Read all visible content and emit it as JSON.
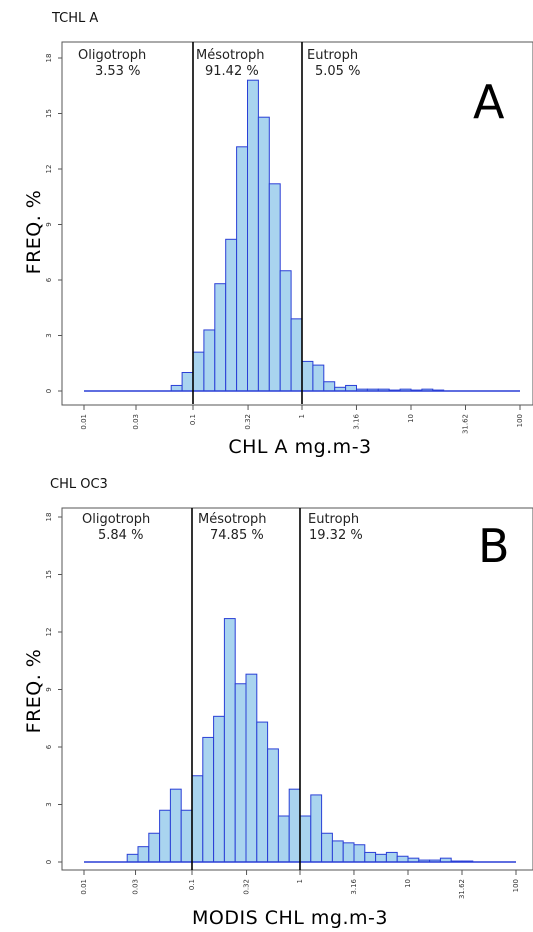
{
  "chart_data": [
    {
      "panel_title": "TCHL A",
      "panel_letter": "A",
      "type": "bar",
      "xlabel": "CHL A mg.m-3",
      "ylabel": "FREQ. %",
      "x_scale": "log10",
      "xlim": [
        0.01,
        100
      ],
      "ylim": [
        0,
        18
      ],
      "x_ticks": [
        "0.01",
        "0.03",
        "0.1",
        "0.32",
        "1",
        "3.16",
        "10",
        "31.62",
        "100"
      ],
      "y_ticks": [
        "0",
        "3",
        "6",
        "9",
        "12",
        "15",
        "18"
      ],
      "zones": [
        {
          "name": "Oligotroph",
          "percent": "3.53 %"
        },
        {
          "name": "Mésotroph",
          "percent": "91.42 %"
        },
        {
          "name": "Eutroph",
          "percent": "5.05 %"
        }
      ],
      "zone_boundaries": [
        0.1,
        1
      ],
      "bins_start_log10": -1.2,
      "bin_width_log10": 0.1,
      "values": [
        0.3,
        1.0,
        2.1,
        3.3,
        5.8,
        8.2,
        13.2,
        16.8,
        14.8,
        11.2,
        6.5,
        3.9,
        1.6,
        1.4,
        0.5,
        0.2,
        0.3,
        0.1,
        0.1,
        0.1,
        0.05,
        0.1,
        0.05,
        0.1,
        0.05
      ],
      "baseline_range_log10": [
        -2,
        2
      ]
    },
    {
      "panel_title": "CHL OC3",
      "panel_letter": "B",
      "type": "bar",
      "xlabel": "MODIS CHL mg.m-3",
      "ylabel": "FREQ. %",
      "x_scale": "log10",
      "xlim": [
        0.01,
        100
      ],
      "ylim": [
        0,
        18
      ],
      "x_ticks": [
        "0.01",
        "0.03",
        "0.1",
        "0.32",
        "1",
        "3.16",
        "10",
        "31.62",
        "100"
      ],
      "y_ticks": [
        "0",
        "3",
        "6",
        "9",
        "12",
        "15",
        "18"
      ],
      "zones": [
        {
          "name": "Oligotroph",
          "percent": "5.84 %"
        },
        {
          "name": "Mésotroph",
          "percent": "74.85 %"
        },
        {
          "name": "Eutroph",
          "percent": "19.32 %"
        }
      ],
      "zone_boundaries": [
        0.1,
        1
      ],
      "bins_start_log10": -1.6,
      "bin_width_log10": 0.1,
      "values": [
        0.4,
        0.8,
        1.5,
        2.7,
        3.8,
        2.7,
        4.5,
        6.5,
        7.6,
        12.7,
        9.3,
        9.8,
        7.3,
        5.9,
        2.4,
        3.8,
        2.4,
        3.5,
        1.5,
        1.1,
        1.0,
        0.9,
        0.5,
        0.4,
        0.5,
        0.3,
        0.2,
        0.1,
        0.1,
        0.2,
        0.05,
        0.05
      ],
      "baseline_range_log10": [
        -2,
        2
      ]
    }
  ]
}
